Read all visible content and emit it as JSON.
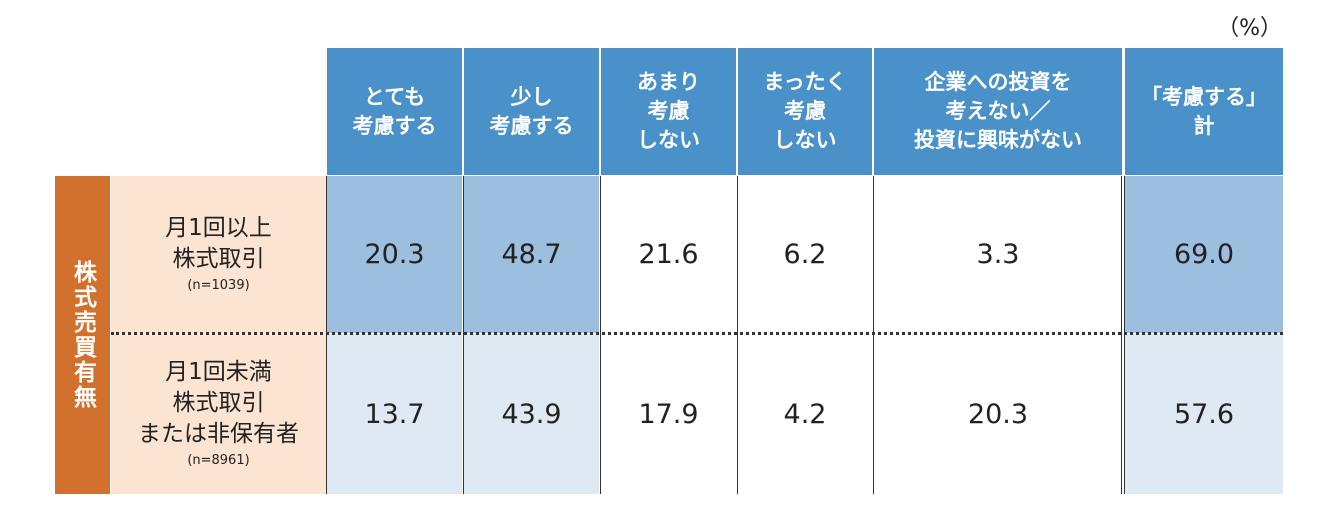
{
  "unit": "（%）",
  "table": {
    "headers": [
      [
        "とても",
        "考慮する"
      ],
      [
        "少し",
        "考慮する"
      ],
      [
        "あまり",
        "考慮",
        "しない"
      ],
      [
        "まったく",
        "考慮",
        "しない"
      ],
      [
        "企業への投資を",
        "考えない／",
        "投資に興味がない"
      ],
      [
        "「考慮する」",
        "計"
      ]
    ],
    "row_group": "株式売買有無",
    "rows": [
      {
        "label": [
          "月1回以上",
          "株式取引"
        ],
        "n": "(n=1039)",
        "values": [
          "20.3",
          "48.7",
          "21.6",
          "6.2",
          "3.3",
          "69.0"
        ]
      },
      {
        "label": [
          "月1回未満",
          "株式取引",
          "または非保有者"
        ],
        "n": "(n=8961)",
        "values": [
          "13.7",
          "43.9",
          "17.9",
          "4.2",
          "20.3",
          "57.6"
        ]
      }
    ]
  }
}
